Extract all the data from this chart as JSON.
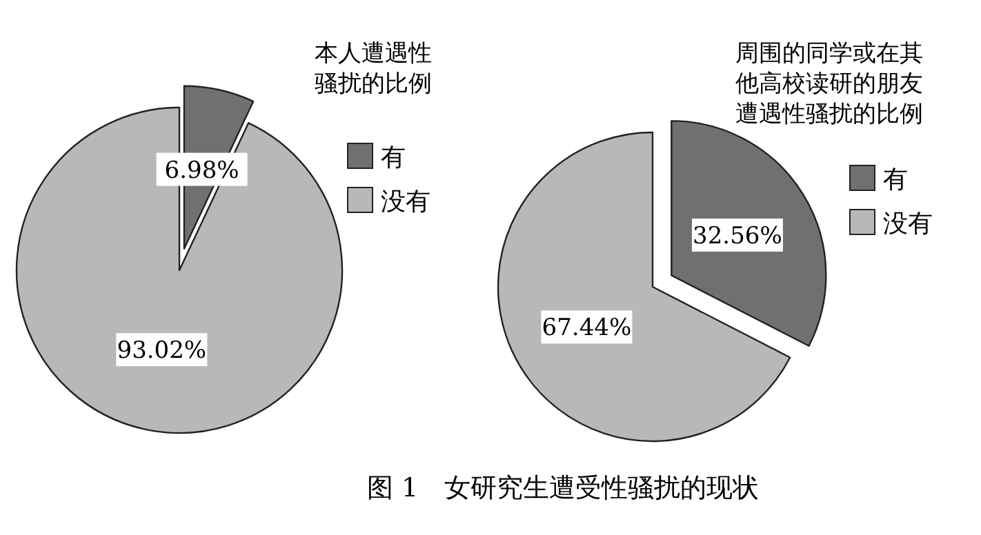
{
  "chart_data": [
    {
      "type": "pie",
      "title": "本人遭遇性骚扰的比例",
      "categories": [
        "有",
        "没有"
      ],
      "values": [
        6.98,
        93.02
      ],
      "value_labels": [
        "6.98%",
        "93.02%"
      ],
      "colors": [
        "#707070",
        "#b8b8b8"
      ],
      "legend": "top right",
      "annotations": [
        "图 1　女研究生遭受性骚扰的现状"
      ]
    },
    {
      "type": "pie",
      "title": "周围的同学或在其他高校读研的朋友遭遇性骚扰的比例",
      "categories": [
        "有",
        "没有"
      ],
      "values": [
        32.56,
        67.44
      ],
      "value_labels": [
        "32.56%",
        "67.44%"
      ],
      "colors": [
        "#707070",
        "#b8b8b8"
      ],
      "legend": "top right"
    }
  ]
}
